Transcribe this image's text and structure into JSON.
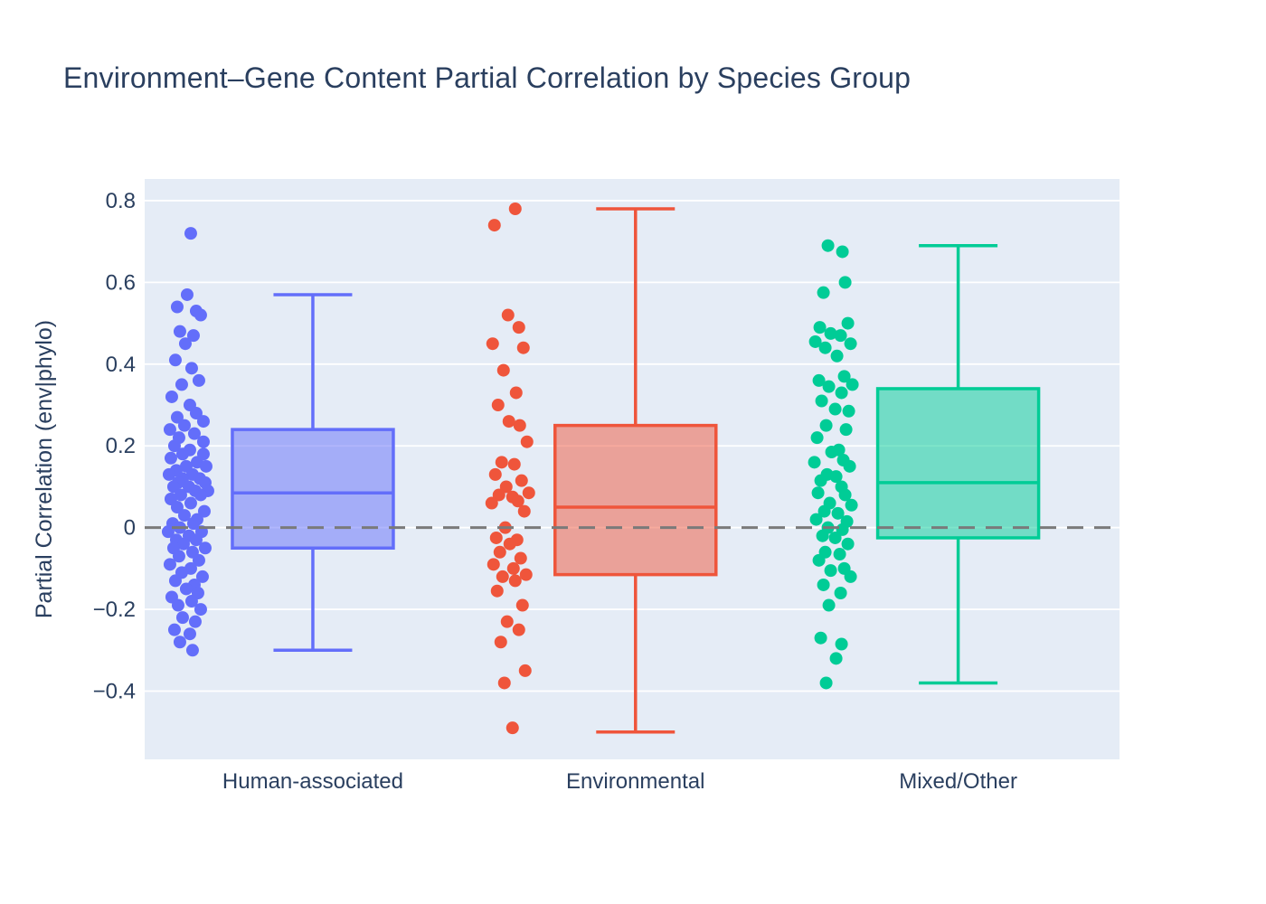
{
  "chart_data": {
    "type": "box",
    "title": "Environment–Gene Content Partial Correlation by Species Group",
    "ylabel": "Partial Correlation (env|phylo)",
    "xlabel": "",
    "legend": "none",
    "grid": "on",
    "plot_bg": "#e5ecf6",
    "grid_color": "#ffffff",
    "text_color": "#2a3f5f",
    "zero_line": {
      "y": 0,
      "style": "dashed",
      "color": "#7a7a7a"
    },
    "ylim": [
      -0.567,
      0.853
    ],
    "yticks": [
      {
        "v": 0.8,
        "label": "0.8"
      },
      {
        "v": 0.6,
        "label": "0.6"
      },
      {
        "v": 0.4,
        "label": "0.4"
      },
      {
        "v": 0.2,
        "label": "0.2"
      },
      {
        "v": 0.0,
        "label": "0"
      },
      {
        "v": -0.2,
        "label": "−0.2"
      },
      {
        "v": -0.4,
        "label": "−0.4"
      }
    ],
    "groups": [
      {
        "label": "Human-associated",
        "color": "#636efa",
        "box": {
          "low": -0.3,
          "q1": -0.05,
          "median": 0.085,
          "q3": 0.24,
          "high": 0.57
        },
        "points": [
          [
            0.72,
            3
          ],
          [
            0.57,
            -1
          ],
          [
            0.54,
            -12
          ],
          [
            0.53,
            9
          ],
          [
            0.52,
            14
          ],
          [
            0.48,
            -9
          ],
          [
            0.47,
            6
          ],
          [
            0.45,
            -3
          ],
          [
            0.41,
            -14
          ],
          [
            0.39,
            4
          ],
          [
            0.36,
            12
          ],
          [
            0.35,
            -7
          ],
          [
            0.32,
            -18
          ],
          [
            0.3,
            2
          ],
          [
            0.28,
            9
          ],
          [
            0.27,
            -12
          ],
          [
            0.26,
            17
          ],
          [
            0.25,
            -4
          ],
          [
            0.24,
            -20
          ],
          [
            0.23,
            7
          ],
          [
            0.22,
            -10
          ],
          [
            0.21,
            17
          ],
          [
            0.2,
            -15
          ],
          [
            0.19,
            2
          ],
          [
            0.18,
            17
          ],
          [
            0.18,
            -6
          ],
          [
            0.17,
            -19
          ],
          [
            0.16,
            10
          ],
          [
            0.15,
            -2
          ],
          [
            0.15,
            20
          ],
          [
            0.14,
            -13
          ],
          [
            0.13,
            5
          ],
          [
            0.13,
            -21
          ],
          [
            0.12,
            13
          ],
          [
            0.12,
            -6
          ],
          [
            0.11,
            19
          ],
          [
            0.11,
            -11
          ],
          [
            0.1,
            1
          ],
          [
            0.1,
            -16
          ],
          [
            0.09,
            8
          ],
          [
            0.09,
            22
          ],
          [
            0.08,
            -8
          ],
          [
            0.08,
            14
          ],
          [
            0.07,
            -19
          ],
          [
            0.06,
            3
          ],
          [
            0.05,
            -12
          ],
          [
            0.04,
            18
          ],
          [
            0.03,
            -4
          ],
          [
            0.02,
            10
          ],
          [
            0.01,
            -17
          ],
          [
            0.01,
            6
          ],
          [
            0.0,
            -9
          ],
          [
            -0.01,
            15
          ],
          [
            -0.01,
            -22
          ],
          [
            -0.02,
            1
          ],
          [
            -0.03,
            -13
          ],
          [
            -0.03,
            9
          ],
          [
            -0.04,
            -5
          ],
          [
            -0.05,
            19
          ],
          [
            -0.05,
            -16
          ],
          [
            -0.06,
            5
          ],
          [
            -0.07,
            -10
          ],
          [
            -0.08,
            12
          ],
          [
            -0.09,
            -20
          ],
          [
            -0.1,
            3
          ],
          [
            -0.11,
            -7
          ],
          [
            -0.12,
            16
          ],
          [
            -0.13,
            -14
          ],
          [
            -0.14,
            7
          ],
          [
            -0.15,
            -2
          ],
          [
            -0.16,
            11
          ],
          [
            -0.17,
            -18
          ],
          [
            -0.18,
            4
          ],
          [
            -0.19,
            -11
          ],
          [
            -0.2,
            14
          ],
          [
            -0.22,
            -6
          ],
          [
            -0.23,
            8
          ],
          [
            -0.25,
            -15
          ],
          [
            -0.26,
            2
          ],
          [
            -0.28,
            -9
          ],
          [
            -0.3,
            5
          ]
        ]
      },
      {
        "label": "Environmental",
        "color": "#ef553b",
        "box": {
          "low": -0.5,
          "q1": -0.115,
          "median": 0.05,
          "q3": 0.25,
          "high": 0.78
        },
        "points": [
          [
            0.78,
            5
          ],
          [
            0.74,
            -18
          ],
          [
            0.52,
            -3
          ],
          [
            0.49,
            9
          ],
          [
            0.45,
            -20
          ],
          [
            0.44,
            14
          ],
          [
            0.385,
            -8
          ],
          [
            0.33,
            6
          ],
          [
            0.3,
            -14
          ],
          [
            0.26,
            -2
          ],
          [
            0.25,
            10
          ],
          [
            0.21,
            18
          ],
          [
            0.16,
            -10
          ],
          [
            0.155,
            4
          ],
          [
            0.13,
            -17
          ],
          [
            0.115,
            12
          ],
          [
            0.1,
            -5
          ],
          [
            0.085,
            20
          ],
          [
            0.08,
            -13
          ],
          [
            0.075,
            2
          ],
          [
            0.065,
            8
          ],
          [
            0.06,
            -21
          ],
          [
            0.04,
            15
          ],
          [
            0.0,
            -6
          ],
          [
            -0.025,
            -16
          ],
          [
            -0.03,
            7
          ],
          [
            -0.04,
            -1
          ],
          [
            -0.06,
            -12
          ],
          [
            -0.075,
            11
          ],
          [
            -0.09,
            -19
          ],
          [
            -0.1,
            3
          ],
          [
            -0.115,
            17
          ],
          [
            -0.12,
            -9
          ],
          [
            -0.13,
            5
          ],
          [
            -0.155,
            -15
          ],
          [
            -0.19,
            13
          ],
          [
            -0.23,
            -4
          ],
          [
            -0.25,
            9
          ],
          [
            -0.28,
            -11
          ],
          [
            -0.35,
            16
          ],
          [
            -0.38,
            -7
          ],
          [
            -0.49,
            2
          ]
        ]
      },
      {
        "label": "Mixed/Other",
        "color": "#00cc96",
        "box": {
          "low": -0.38,
          "q1": -0.025,
          "median": 0.11,
          "q3": 0.34,
          "high": 0.69
        },
        "points": [
          [
            0.69,
            -6
          ],
          [
            0.675,
            10
          ],
          [
            0.6,
            13
          ],
          [
            0.575,
            -11
          ],
          [
            0.5,
            16
          ],
          [
            0.49,
            -15
          ],
          [
            0.475,
            -3
          ],
          [
            0.47,
            8
          ],
          [
            0.455,
            -20
          ],
          [
            0.45,
            19
          ],
          [
            0.44,
            -9
          ],
          [
            0.42,
            4
          ],
          [
            0.37,
            12
          ],
          [
            0.36,
            -16
          ],
          [
            0.35,
            21
          ],
          [
            0.345,
            -5
          ],
          [
            0.33,
            9
          ],
          [
            0.31,
            -13
          ],
          [
            0.29,
            2
          ],
          [
            0.285,
            17
          ],
          [
            0.25,
            -8
          ],
          [
            0.24,
            14
          ],
          [
            0.22,
            -18
          ],
          [
            0.19,
            6
          ],
          [
            0.185,
            -2
          ],
          [
            0.165,
            11
          ],
          [
            0.16,
            -21
          ],
          [
            0.15,
            18
          ],
          [
            0.13,
            -7
          ],
          [
            0.125,
            3
          ],
          [
            0.115,
            -14
          ],
          [
            0.1,
            9
          ],
          [
            0.085,
            -17
          ],
          [
            0.08,
            13
          ],
          [
            0.06,
            -4
          ],
          [
            0.055,
            20
          ],
          [
            0.04,
            -10
          ],
          [
            0.035,
            5
          ],
          [
            0.02,
            -19
          ],
          [
            0.015,
            15
          ],
          [
            0.0,
            -6
          ],
          [
            -0.005,
            10
          ],
          [
            -0.02,
            -12
          ],
          [
            -0.025,
            2
          ],
          [
            -0.04,
            16
          ],
          [
            -0.06,
            -9
          ],
          [
            -0.065,
            7
          ],
          [
            -0.08,
            -16
          ],
          [
            -0.1,
            12
          ],
          [
            -0.105,
            -3
          ],
          [
            -0.12,
            19
          ],
          [
            -0.14,
            -11
          ],
          [
            -0.16,
            8
          ],
          [
            -0.19,
            -5
          ],
          [
            -0.27,
            -14
          ],
          [
            -0.285,
            9
          ],
          [
            -0.32,
            3
          ],
          [
            -0.38,
            -8
          ]
        ]
      }
    ]
  }
}
